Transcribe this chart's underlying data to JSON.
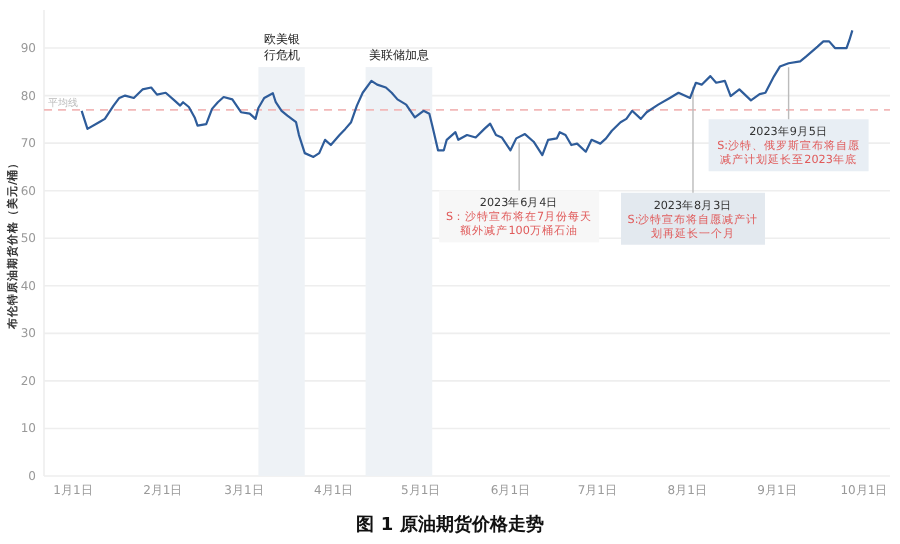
{
  "chart_data": {
    "type": "line",
    "title": "图 1 原油期货价格走势",
    "ylabel": "布伦特原油期货价格（美元/桶）",
    "x": [
      "2023-01-04",
      "2023-01-06",
      "2023-01-10",
      "2023-01-12",
      "2023-01-15",
      "2023-01-17",
      "2023-01-19",
      "2023-01-22",
      "2023-01-25",
      "2023-01-28",
      "2023-01-30",
      "2023-02-02",
      "2023-02-05",
      "2023-02-07",
      "2023-02-08",
      "2023-02-10",
      "2023-02-12",
      "2023-02-13",
      "2023-02-16",
      "2023-02-18",
      "2023-02-20",
      "2023-02-22",
      "2023-02-25",
      "2023-02-28",
      "2023-03-03",
      "2023-03-05",
      "2023-03-06",
      "2023-03-08",
      "2023-03-11",
      "2023-03-12",
      "2023-03-14",
      "2023-03-16",
      "2023-03-19",
      "2023-03-20",
      "2023-03-22",
      "2023-03-25",
      "2023-03-27",
      "2023-03-29",
      "2023-03-31",
      "2023-04-03",
      "2023-04-05",
      "2023-04-07",
      "2023-04-09",
      "2023-04-11",
      "2023-04-14",
      "2023-04-16",
      "2023-04-19",
      "2023-04-21",
      "2023-04-23",
      "2023-04-26",
      "2023-04-29",
      "2023-05-02",
      "2023-05-04",
      "2023-05-05",
      "2023-05-07",
      "2023-05-09",
      "2023-05-10",
      "2023-05-13",
      "2023-05-14",
      "2023-05-17",
      "2023-05-20",
      "2023-05-23",
      "2023-05-25",
      "2023-05-27",
      "2023-05-29",
      "2023-06-01",
      "2023-06-03",
      "2023-06-06",
      "2023-06-09",
      "2023-06-12",
      "2023-06-14",
      "2023-06-17",
      "2023-06-18",
      "2023-06-20",
      "2023-06-22",
      "2023-06-24",
      "2023-06-27",
      "2023-06-29",
      "2023-07-02",
      "2023-07-04",
      "2023-07-06",
      "2023-07-09",
      "2023-07-11",
      "2023-07-13",
      "2023-07-16",
      "2023-07-18",
      "2023-07-22",
      "2023-07-26",
      "2023-07-29",
      "2023-08-02",
      "2023-08-04",
      "2023-08-06",
      "2023-08-09",
      "2023-08-11",
      "2023-08-14",
      "2023-08-16",
      "2023-08-19",
      "2023-08-23",
      "2023-08-26",
      "2023-08-28",
      "2023-08-31",
      "2023-09-02",
      "2023-09-05",
      "2023-09-09",
      "2023-09-11",
      "2023-09-15",
      "2023-09-17",
      "2023-09-19",
      "2023-09-21",
      "2023-09-25",
      "2023-09-26",
      "2023-09-27"
    ],
    "series": [
      {
        "color": "#2e5c9a",
        "values": [
          76.8,
          73.0,
          74.4,
          75.1,
          77.9,
          79.5,
          80.0,
          79.5,
          81.3,
          81.7,
          80.2,
          80.6,
          79.0,
          77.9,
          78.6,
          77.6,
          75.4,
          73.7,
          74.0,
          77.2,
          78.6,
          79.7,
          79.2,
          76.5,
          76.2,
          75.1,
          77.4,
          79.5,
          80.5,
          78.6,
          76.8,
          75.8,
          74.4,
          71.7,
          67.9,
          67.1,
          67.9,
          70.7,
          69.6,
          71.7,
          73.0,
          74.4,
          77.9,
          80.6,
          83.1,
          82.3,
          81.7,
          80.6,
          79.2,
          78.1,
          75.4,
          76.8,
          76.2,
          73.7,
          68.5,
          68.5,
          70.7,
          72.3,
          70.7,
          71.7,
          71.2,
          73.0,
          74.1,
          71.7,
          71.2,
          68.5,
          71.0,
          71.9,
          70.3,
          67.5,
          70.7,
          71.0,
          72.3,
          71.7,
          69.6,
          69.9,
          68.2,
          70.7,
          69.9,
          71.0,
          72.6,
          74.4,
          75.1,
          76.8,
          75.1,
          76.5,
          78.1,
          79.5,
          80.6,
          79.5,
          82.7,
          82.3,
          84.1,
          82.7,
          83.1,
          79.9,
          81.3,
          79.0,
          80.3,
          80.6,
          84.1,
          86.1,
          86.8,
          87.2,
          88.2,
          90.3,
          91.4,
          91.4,
          90.0,
          90.0,
          91.7,
          93.7
        ]
      }
    ],
    "xlim": [
      "2022-12-22",
      "2023-10-10"
    ],
    "xticks": [
      {
        "value": "2023-01-01",
        "label": "1月1日"
      },
      {
        "value": "2023-02-01",
        "label": "2月1日"
      },
      {
        "value": "2023-03-01",
        "label": "3月1日"
      },
      {
        "value": "2023-04-01",
        "label": "4月1日"
      },
      {
        "value": "2023-05-01",
        "label": "5月1日"
      },
      {
        "value": "2023-06-01",
        "label": "6月1日"
      },
      {
        "value": "2023-07-01",
        "label": "7月1日"
      },
      {
        "value": "2023-08-01",
        "label": "8月1日"
      },
      {
        "value": "2023-09-01",
        "label": "9月1日"
      },
      {
        "value": "2023-10-01",
        "label": "10月1日"
      }
    ],
    "ylim": [
      0,
      98
    ],
    "yticks": [
      0,
      10,
      20,
      30,
      40,
      50,
      60,
      70,
      80,
      90
    ],
    "grid": "y",
    "marker": "none",
    "line_style": "solid",
    "ref_lines": [
      {
        "axis": "y",
        "value": 77,
        "label": "平均线",
        "color": "#f2b8b8",
        "line_style": "dashed"
      }
    ],
    "bands": [
      {
        "axis": "x",
        "from": "2023-03-06",
        "to": "2023-03-22",
        "label": "欧美银行危机",
        "color": "#eef2f6"
      },
      {
        "axis": "x",
        "from": "2023-04-12",
        "to": "2023-05-05",
        "label": "美联储加息",
        "color": "#eef2f6"
      }
    ],
    "annotations": [
      {
        "text": "2023年6月4日\nS：沙特宣布将在7月份每天额外减产100万桶石油",
        "x": "2023-06-04",
        "y": 71.0
      },
      {
        "text": "2023年8月3日\nS:沙特宣布将自愿减产计划再延长一个月",
        "x": "2023-08-03",
        "y": 82.7
      },
      {
        "text": "2023年9月5日\nS:沙特、俄罗斯宣布将自愿减产计划延长至2023年底",
        "x": "2023-09-05",
        "y": 86.8
      }
    ]
  }
}
